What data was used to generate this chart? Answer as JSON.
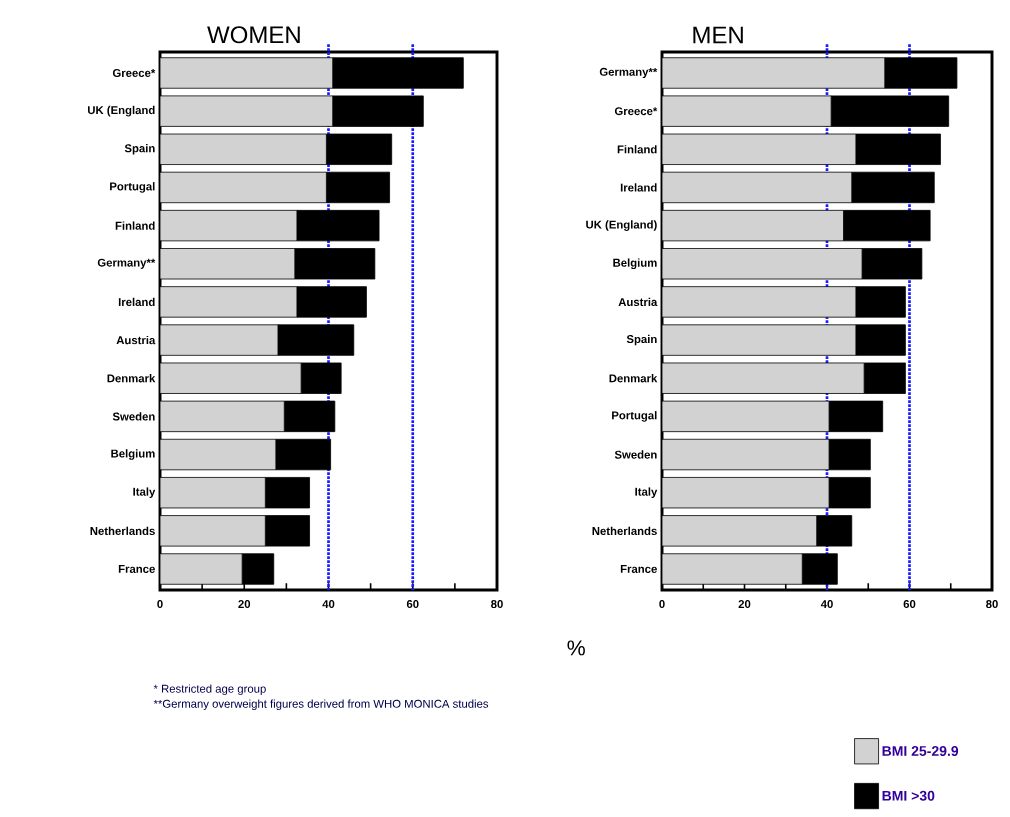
{
  "chart_data": [
    {
      "type": "bar",
      "title": "WOMEN",
      "orientation": "horizontal",
      "stacked": true,
      "xlabel": "%",
      "categories": [
        "Greece*",
        "UK (England",
        "Spain",
        "Portugal",
        "Finland",
        "Germany**",
        "Ireland",
        "Austria",
        "Denmark",
        "Sweden",
        "Belgium",
        "Italy",
        "Netherlands",
        "France"
      ],
      "series": [
        {
          "color": "#d2d2d2",
          "values": [
            41,
            41,
            39.5,
            39.5,
            32.5,
            32,
            32.5,
            28,
            33.5,
            29.5,
            27.5,
            25,
            25,
            19.5
          ]
        },
        {
          "color": "#000000",
          "values": [
            31,
            21.5,
            15.5,
            15,
            19.5,
            19,
            16.5,
            18,
            9.5,
            12,
            13,
            10.5,
            10.5,
            7.5
          ]
        }
      ],
      "xlim": [
        0,
        80
      ],
      "xticks": [
        0,
        {
          "value": 10,
          "label": null
        },
        20,
        {
          "value": 30,
          "label": null
        },
        40,
        {
          "value": 50,
          "label": null
        },
        60,
        {
          "value": 70,
          "label": null
        },
        80
      ],
      "ref_lines": [
        {
          "axis": "x",
          "value": 40,
          "color": "#1a1aff",
          "line_style": "dotted"
        },
        {
          "axis": "x",
          "value": 60,
          "color": "#1a1aff",
          "line_style": "dotted"
        }
      ],
      "annotations": [
        "* Restricted age group",
        "**Germany overweight figures derived from WHO MONICA  studies"
      ]
    },
    {
      "type": "bar",
      "title": "MEN",
      "orientation": "horizontal",
      "stacked": true,
      "categories": [
        "Germany**",
        "Greece*",
        "Finland",
        "Ireland",
        "UK (England)",
        "Belgium",
        "Austria",
        "Spain",
        "Denmark",
        "Portugal",
        "Sweden",
        "Italy",
        "Netherlands",
        "France"
      ],
      "series": [
        {
          "name": "BMI 25-29.9",
          "color": "#d2d2d2",
          "values": [
            54,
            41,
            47,
            46,
            44,
            48.5,
            47,
            47,
            49,
            40.5,
            40.5,
            40.5,
            37.5,
            34
          ]
        },
        {
          "name": "BMI >30",
          "color": "#000000",
          "values": [
            17.5,
            28.5,
            20.5,
            20,
            21,
            14.5,
            12,
            12,
            10,
            13,
            10,
            10,
            8.5,
            8.5
          ]
        }
      ],
      "xlim": [
        0,
        80
      ],
      "xticks": [
        0,
        {
          "value": 10,
          "label": null
        },
        20,
        {
          "value": 30,
          "label": null
        },
        40,
        {
          "value": 50,
          "label": null
        },
        60,
        {
          "value": 70,
          "label": null
        },
        80
      ],
      "ref_lines": [
        {
          "axis": "x",
          "value": 40,
          "color": "#1a1aff",
          "line_style": "dotted"
        },
        {
          "axis": "x",
          "value": 60,
          "color": "#1a1aff",
          "line_style": "dotted"
        }
      ],
      "legend": "bottom right"
    }
  ]
}
